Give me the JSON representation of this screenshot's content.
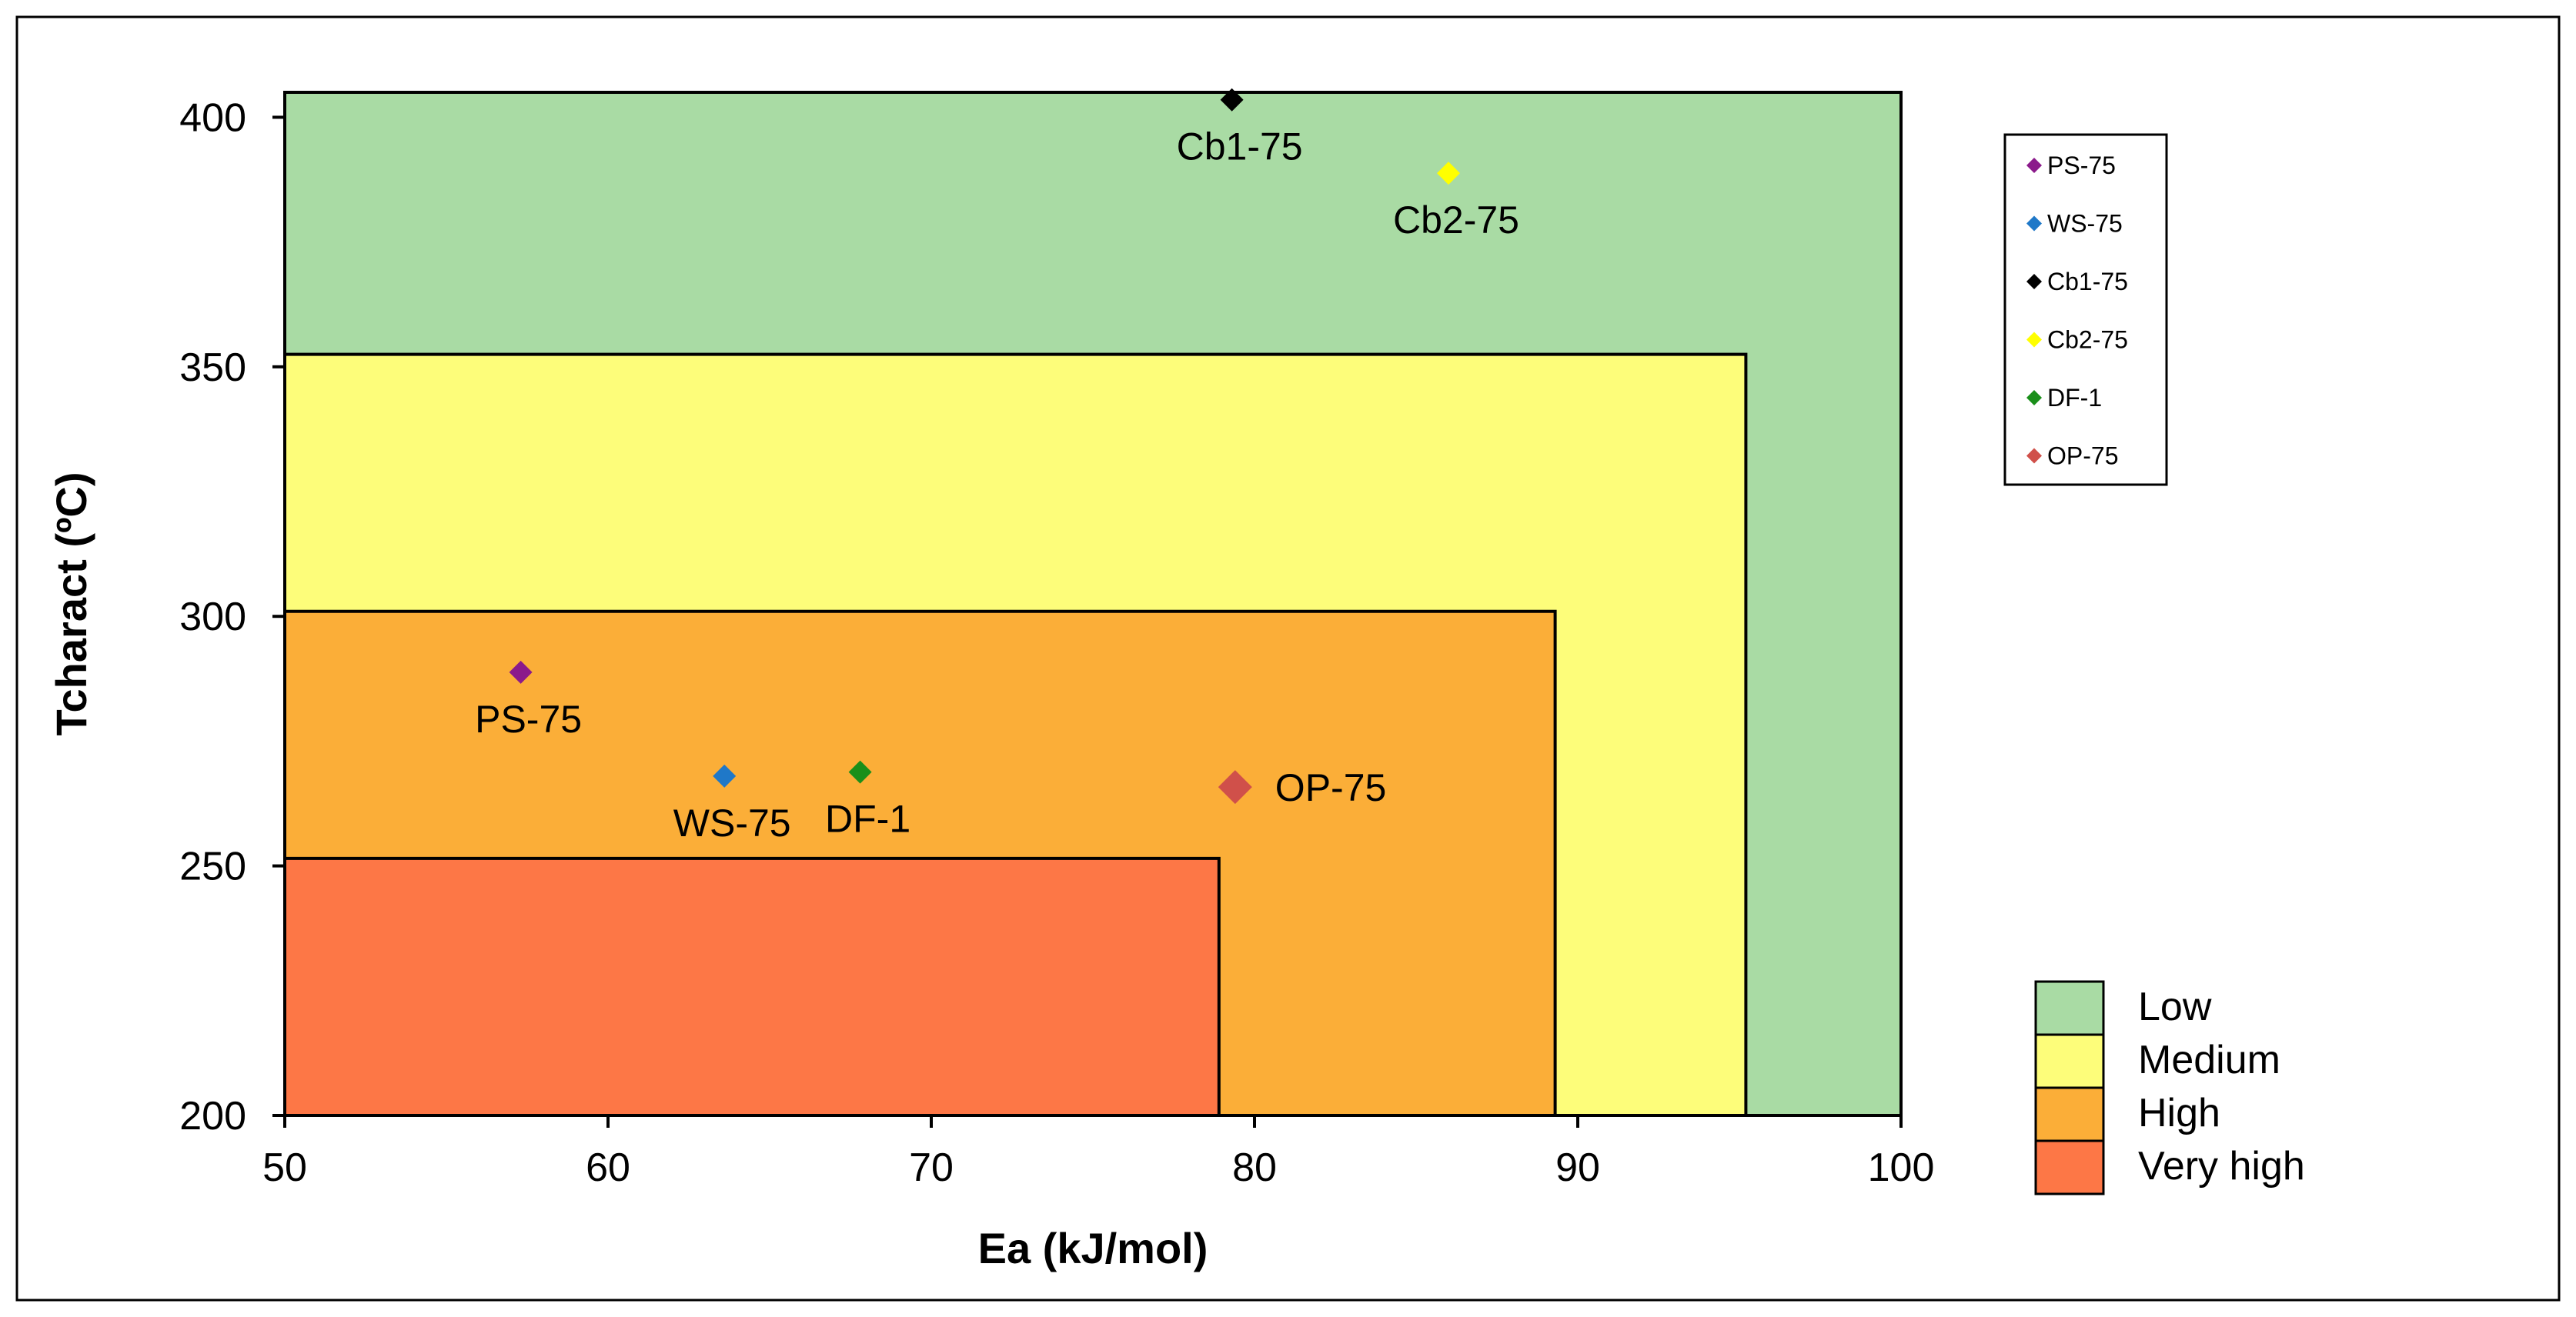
{
  "chart_data": {
    "type": "scatter",
    "title": "",
    "xlabel": "Ea (kJ/mol)",
    "ylabel": "Tcharact (ºC)",
    "xlim": [
      50,
      100
    ],
    "ylim": [
      200,
      405
    ],
    "x_ticks": [
      50,
      60,
      70,
      80,
      90,
      100
    ],
    "y_ticks": [
      200,
      250,
      300,
      350,
      400
    ],
    "grid": false,
    "zones": [
      {
        "name": "Low",
        "x_max": 100,
        "y_max": 405,
        "color": "#a9dba4"
      },
      {
        "name": "Medium",
        "x_max": 95.2,
        "y_max": 352.5,
        "color": "#fdfd7a"
      },
      {
        "name": "High",
        "x_max": 89.3,
        "y_max": 301,
        "color": "#fbae38"
      },
      {
        "name": "Very high",
        "x_max": 78.9,
        "y_max": 251.5,
        "color": "#fd7746"
      }
    ],
    "series": [
      {
        "name": "PS-75",
        "x": 57.3,
        "y": 288.8,
        "color": "#8b1a8b",
        "label_pos": "below",
        "size": "small"
      },
      {
        "name": "WS-75",
        "x": 63.6,
        "y": 268.0,
        "color": "#1f78c8",
        "label_pos": "below",
        "size": "small"
      },
      {
        "name": "Cb1-75",
        "x": 79.3,
        "y": 403.5,
        "color": "#000000",
        "label_pos": "below",
        "size": "small"
      },
      {
        "name": "Cb2-75",
        "x": 86.0,
        "y": 388.8,
        "color": "#ffff00",
        "label_pos": "below",
        "size": "small"
      },
      {
        "name": "DF-1",
        "x": 67.8,
        "y": 268.8,
        "color": "#1a8f1a",
        "label_pos": "below",
        "size": "small"
      },
      {
        "name": "OP-75",
        "x": 79.4,
        "y": 265.8,
        "color": "#d0504a",
        "label_pos": "right",
        "size": "large"
      }
    ],
    "legend_position": "top-right",
    "zone_legend_position": "bottom-right"
  }
}
